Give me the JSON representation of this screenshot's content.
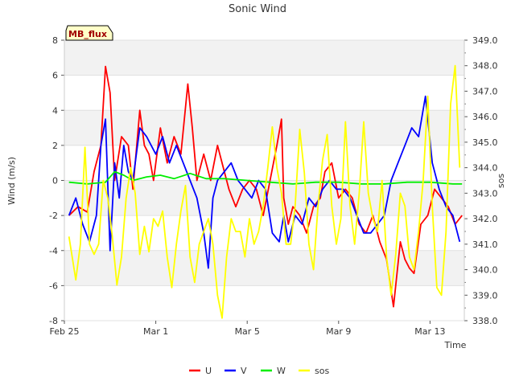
{
  "chart_data": {
    "type": "line",
    "title": "Sonic Wind",
    "site_label": "MB_flux",
    "xlabel": "Time",
    "ylabel": "Wind (m/s)",
    "y2label": "sos",
    "x_ticks": [
      {
        "day": 0,
        "label": "Feb 25"
      },
      {
        "day": 4,
        "label": "Mar 1"
      },
      {
        "day": 8,
        "label": "Mar 5"
      },
      {
        "day": 12,
        "label": "Mar 9"
      },
      {
        "day": 16,
        "label": "Mar 13"
      }
    ],
    "xlim": [
      0,
      17.5
    ],
    "ylim": [
      -8,
      8
    ],
    "y_ticks": [
      "-8",
      "-6",
      "-4",
      "-2",
      "0",
      "2",
      "4",
      "6",
      "8"
    ],
    "y2lim": [
      338,
      349
    ],
    "y2_ticks": [
      "338.0",
      "339.0",
      "340.0",
      "341.0",
      "342.0",
      "343.0",
      "344.0",
      "345.0",
      "346.0",
      "347.0",
      "348.0",
      "349.0"
    ],
    "grid_bands": true,
    "legend_position": "bottom",
    "series": [
      {
        "name": "U",
        "color": "#ff0000",
        "axis": "left",
        "x": [
          0.2,
          0.6,
          1.0,
          1.3,
          1.6,
          1.8,
          2.0,
          2.2,
          2.5,
          2.8,
          3.0,
          3.3,
          3.5,
          3.7,
          3.9,
          4.2,
          4.5,
          4.8,
          5.1,
          5.4,
          5.6,
          5.8,
          6.1,
          6.4,
          6.7,
          7.0,
          7.2,
          7.5,
          7.8,
          8.1,
          8.4,
          8.7,
          9.0,
          9.3,
          9.5,
          9.6,
          9.8,
          10.0,
          10.3,
          10.6,
          10.9,
          11.2,
          11.4,
          11.7,
          12.0,
          12.3,
          12.6,
          12.9,
          13.2,
          13.5,
          13.8,
          14.1,
          14.4,
          14.7,
          14.9,
          15.1,
          15.3,
          15.6,
          15.9,
          16.2,
          16.5,
          16.8,
          17.1,
          17.4
        ],
        "y": [
          -2.0,
          -1.5,
          -1.8,
          0.5,
          2.0,
          6.5,
          5.0,
          0.0,
          2.5,
          2.0,
          -0.5,
          4.0,
          2.0,
          1.5,
          0.0,
          3.0,
          1.0,
          2.5,
          1.5,
          5.5,
          3.0,
          0.0,
          1.5,
          0.0,
          2.0,
          0.5,
          -0.5,
          -1.5,
          -0.5,
          0.0,
          -0.5,
          -2.0,
          0.0,
          2.0,
          3.5,
          -1.0,
          -2.5,
          -1.5,
          -2.0,
          -3.0,
          -1.5,
          -1.0,
          0.5,
          1.0,
          -1.0,
          -0.5,
          -1.0,
          -2.5,
          -3.0,
          -2.0,
          -3.5,
          -4.5,
          -7.2,
          -3.5,
          -4.5,
          -5.0,
          -5.3,
          -2.5,
          -2.0,
          -0.5,
          -1.0,
          -1.5,
          -2.5,
          -2.0
        ]
      },
      {
        "name": "V",
        "color": "#0000ff",
        "axis": "left",
        "x": [
          0.2,
          0.5,
          0.8,
          1.1,
          1.4,
          1.6,
          1.8,
          2.0,
          2.2,
          2.4,
          2.6,
          2.8,
          3.0,
          3.3,
          3.6,
          3.8,
          4.0,
          4.3,
          4.6,
          4.9,
          5.2,
          5.5,
          5.8,
          6.1,
          6.3,
          6.5,
          6.7,
          7.0,
          7.3,
          7.6,
          7.9,
          8.2,
          8.5,
          8.8,
          9.1,
          9.4,
          9.6,
          9.8,
          10.1,
          10.4,
          10.7,
          11.0,
          11.3,
          11.6,
          11.9,
          12.2,
          12.5,
          12.8,
          13.1,
          13.4,
          13.7,
          14.0,
          14.3,
          14.6,
          14.9,
          15.2,
          15.5,
          15.8,
          16.1,
          16.4,
          16.7,
          17.0,
          17.3
        ],
        "y": [
          -2.0,
          -1.0,
          -2.5,
          -3.5,
          -2.0,
          2.0,
          3.5,
          -4.0,
          1.0,
          -1.0,
          2.0,
          0.5,
          0.0,
          3.0,
          2.5,
          2.0,
          1.5,
          2.5,
          1.0,
          2.0,
          1.0,
          0.0,
          -1.0,
          -3.0,
          -5.0,
          -1.0,
          0.0,
          0.5,
          1.0,
          0.0,
          -0.5,
          -1.0,
          0.0,
          -0.5,
          -3.0,
          -3.5,
          -2.0,
          -3.5,
          -2.0,
          -2.5,
          -1.0,
          -1.5,
          -0.5,
          0.0,
          -0.5,
          -0.5,
          -1.0,
          -2.0,
          -3.0,
          -3.0,
          -2.5,
          -2.0,
          0.0,
          1.0,
          2.0,
          3.0,
          2.5,
          4.8,
          1.0,
          -0.5,
          -1.5,
          -2.0,
          -3.5
        ]
      },
      {
        "name": "W",
        "color": "#00ee00",
        "axis": "left",
        "x": [
          0.2,
          1.0,
          1.8,
          2.2,
          2.6,
          3.0,
          3.6,
          4.2,
          4.8,
          5.5,
          6.2,
          7.0,
          8.0,
          9.0,
          10.0,
          11.0,
          12.0,
          13.0,
          14.0,
          15.0,
          16.0,
          17.0,
          17.4
        ],
        "y": [
          -0.1,
          -0.2,
          -0.1,
          0.5,
          0.3,
          0.0,
          0.2,
          0.3,
          0.1,
          0.4,
          0.1,
          0.1,
          0.0,
          -0.1,
          -0.2,
          -0.1,
          -0.1,
          -0.2,
          -0.2,
          -0.1,
          -0.1,
          -0.2,
          -0.2
        ]
      },
      {
        "name": "sos",
        "color": "#ffff00",
        "axis": "right",
        "x": [
          0.2,
          0.5,
          0.7,
          0.9,
          1.1,
          1.3,
          1.5,
          1.7,
          1.9,
          2.1,
          2.3,
          2.5,
          2.7,
          2.9,
          3.1,
          3.3,
          3.5,
          3.7,
          3.9,
          4.1,
          4.3,
          4.5,
          4.7,
          4.9,
          5.1,
          5.3,
          5.5,
          5.7,
          5.9,
          6.1,
          6.3,
          6.5,
          6.7,
          6.9,
          7.1,
          7.3,
          7.5,
          7.7,
          7.9,
          8.1,
          8.3,
          8.5,
          8.7,
          8.9,
          9.1,
          9.3,
          9.5,
          9.7,
          9.9,
          10.1,
          10.3,
          10.5,
          10.7,
          10.9,
          11.1,
          11.3,
          11.5,
          11.7,
          11.9,
          12.1,
          12.3,
          12.5,
          12.7,
          12.9,
          13.1,
          13.3,
          13.5,
          13.7,
          13.9,
          14.1,
          14.3,
          14.5,
          14.7,
          14.9,
          15.1,
          15.3,
          15.5,
          15.7,
          15.9,
          16.1,
          16.3,
          16.5,
          16.7,
          16.9,
          17.1,
          17.3
        ],
        "y": [
          341.3,
          339.6,
          341.0,
          344.8,
          341.0,
          340.6,
          341.0,
          343.5,
          342.8,
          341.3,
          339.4,
          340.5,
          342.8,
          344.0,
          343.0,
          340.6,
          341.7,
          340.7,
          342.0,
          341.7,
          342.3,
          340.5,
          339.3,
          341.0,
          342.3,
          343.3,
          340.5,
          339.5,
          341.0,
          341.5,
          342.0,
          341.0,
          339.0,
          338.1,
          340.5,
          342.0,
          341.5,
          341.5,
          340.5,
          342.0,
          341.0,
          341.5,
          342.5,
          344.0,
          345.6,
          344.0,
          343.0,
          341.0,
          341.0,
          342.5,
          345.5,
          343.8,
          341.0,
          340.0,
          342.5,
          344.3,
          345.3,
          342.5,
          341.0,
          342.0,
          345.8,
          342.5,
          341.0,
          343.0,
          345.8,
          343.0,
          342.0,
          341.5,
          343.5,
          340.5,
          339.0,
          340.6,
          343.0,
          342.5,
          340.5,
          340.0,
          341.5,
          343.5,
          346.8,
          342.5,
          339.3,
          339.0,
          341.5,
          346.5,
          348.0,
          344.0
        ]
      }
    ]
  }
}
